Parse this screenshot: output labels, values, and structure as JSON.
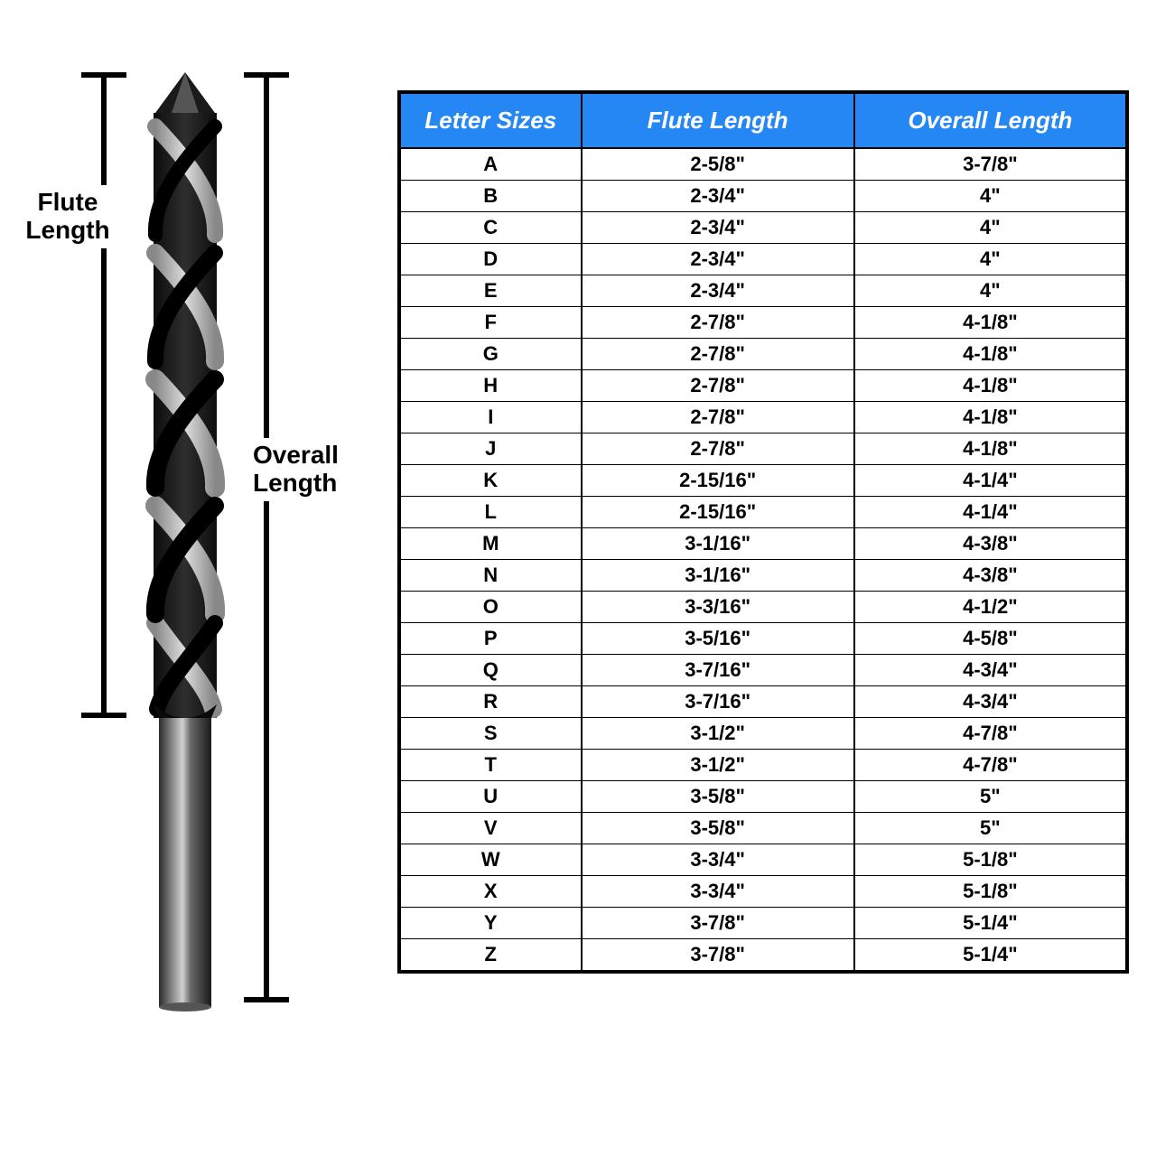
{
  "diagram": {
    "flute_label": "Flute\nLength",
    "overall_label": "Overall\nLength",
    "drill_color_dark": "#1a1a1a",
    "drill_color_mid": "#3a3a3a",
    "drill_color_light": "#6a6a6a",
    "drill_color_highlight": "#b5b5b5",
    "bracket_color": "#000000"
  },
  "table": {
    "header_bg": "#2487f4",
    "header_fg": "#ffffff",
    "border_color": "#000000",
    "cell_fg": "#000000",
    "font_size_header_pt": 20,
    "font_size_cell_pt": 17,
    "columns": [
      "Letter Sizes",
      "Flute Length",
      "Overall Length"
    ],
    "rows": [
      [
        "A",
        "2-5/8\"",
        "3-7/8\""
      ],
      [
        "B",
        "2-3/4\"",
        "4\""
      ],
      [
        "C",
        "2-3/4\"",
        "4\""
      ],
      [
        "D",
        "2-3/4\"",
        "4\""
      ],
      [
        "E",
        "2-3/4\"",
        "4\""
      ],
      [
        "F",
        "2-7/8\"",
        "4-1/8\""
      ],
      [
        "G",
        "2-7/8\"",
        "4-1/8\""
      ],
      [
        "H",
        "2-7/8\"",
        "4-1/8\""
      ],
      [
        "I",
        "2-7/8\"",
        "4-1/8\""
      ],
      [
        "J",
        "2-7/8\"",
        "4-1/8\""
      ],
      [
        "K",
        "2-15/16\"",
        "4-1/4\""
      ],
      [
        "L",
        "2-15/16\"",
        "4-1/4\""
      ],
      [
        "M",
        "3-1/16\"",
        "4-3/8\""
      ],
      [
        "N",
        "3-1/16\"",
        "4-3/8\""
      ],
      [
        "O",
        "3-3/16\"",
        "4-1/2\""
      ],
      [
        "P",
        "3-5/16\"",
        "4-5/8\""
      ],
      [
        "Q",
        "3-7/16\"",
        "4-3/4\""
      ],
      [
        "R",
        "3-7/16\"",
        "4-3/4\""
      ],
      [
        "S",
        "3-1/2\"",
        "4-7/8\""
      ],
      [
        "T",
        "3-1/2\"",
        "4-7/8\""
      ],
      [
        "U",
        "3-5/8\"",
        "5\""
      ],
      [
        "V",
        "3-5/8\"",
        "5\""
      ],
      [
        "W",
        "3-3/4\"",
        "5-1/8\""
      ],
      [
        "X",
        "3-3/4\"",
        "5-1/8\""
      ],
      [
        "Y",
        "3-7/8\"",
        "5-1/4\""
      ],
      [
        "Z",
        "3-7/8\"",
        "5-1/4\""
      ]
    ]
  }
}
